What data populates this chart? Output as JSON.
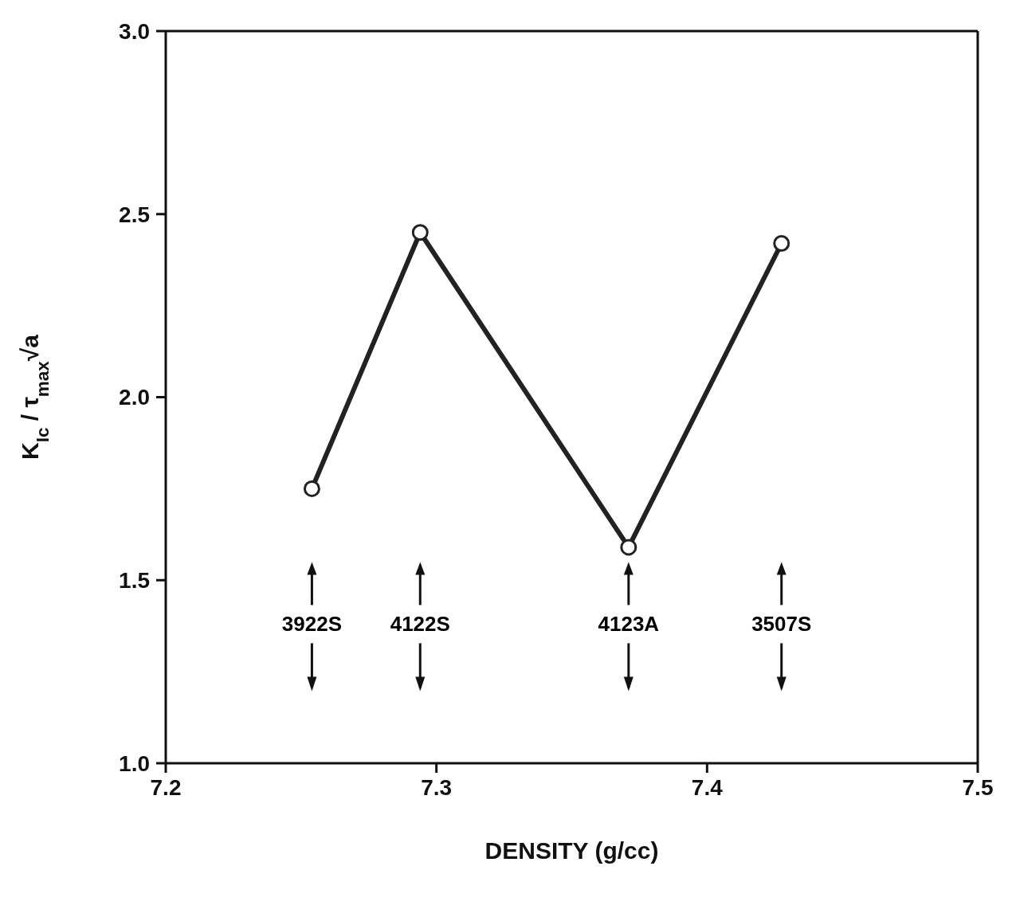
{
  "chart_data": {
    "type": "line",
    "xlabel": "DENSITY (g/cc)",
    "ylabel": "K$_{Ic}$ / τ$_{max}$√a",
    "x": [
      7.254,
      7.294,
      7.371,
      7.4275
    ],
    "series": [
      {
        "color": "#222222",
        "values": [
          1.75,
          2.45,
          1.59,
          2.42
        ]
      }
    ],
    "xlim": [
      7.2,
      7.5
    ],
    "xticks": [
      {
        "value": 7.2,
        "label": "7.2"
      },
      {
        "value": 7.3,
        "label": "7.3"
      },
      {
        "value": 7.4,
        "label": "7.4"
      },
      {
        "value": 7.5,
        "label": "7.5"
      }
    ],
    "ylim": [
      1.0,
      3.0
    ],
    "yticks": [
      {
        "value": 1,
        "label": "1.0"
      },
      {
        "value": 1.5,
        "label": "1.5"
      },
      {
        "value": 2,
        "label": "2.0"
      },
      {
        "value": 2.5,
        "label": "2.5"
      },
      {
        "value": 3,
        "label": "3.0"
      }
    ],
    "annotations": [
      "3922S",
      "4122S",
      "4123A",
      "3507S"
    ],
    "marker": "circle",
    "line_style": "solid",
    "grid": false,
    "legend": false
  }
}
